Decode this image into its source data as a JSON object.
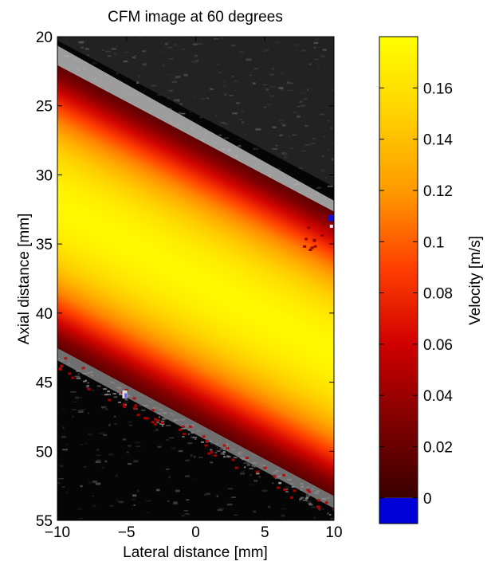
{
  "chart_data": {
    "type": "heatmap",
    "title": "CFM image at 60 degrees",
    "xlabel": "Lateral distance [mm]",
    "ylabel": "Axial distance [mm]",
    "xlim": [
      -10,
      10
    ],
    "ylim": [
      20,
      55
    ],
    "y_reversed": true,
    "x_ticks": [
      {
        "value": -10,
        "label": "−10"
      },
      {
        "value": -5,
        "label": "−5"
      },
      {
        "value": 0,
        "label": "0"
      },
      {
        "value": 5,
        "label": "5"
      },
      {
        "value": 10,
        "label": "10"
      }
    ],
    "y_ticks": [
      {
        "value": 20,
        "label": "20"
      },
      {
        "value": 25,
        "label": "25"
      },
      {
        "value": 30,
        "label": "30"
      },
      {
        "value": 35,
        "label": "35"
      },
      {
        "value": 40,
        "label": "40"
      },
      {
        "value": 45,
        "label": "45"
      },
      {
        "value": 50,
        "label": "50"
      },
      {
        "value": 55,
        "label": "55"
      }
    ],
    "vessel": {
      "upper_wall": [
        [
          -10,
          22.0
        ],
        [
          10,
          32.6
        ]
      ],
      "lower_wall": [
        [
          -10,
          42.6
        ],
        [
          10,
          53.3
        ]
      ],
      "peak_velocity": 0.175
    },
    "colorbar": {
      "label": "Velocity [m/s]",
      "range": [
        -0.01,
        0.18
      ],
      "negative_color": "#0000d8",
      "colormap": [
        "#3a0000",
        "#800000",
        "#d00000",
        "#ff4000",
        "#ff9a00",
        "#ffd200",
        "#ffff00"
      ],
      "ticks": [
        {
          "value": 0,
          "label": "0"
        },
        {
          "value": 0.02,
          "label": "0.02"
        },
        {
          "value": 0.04,
          "label": "0.04"
        },
        {
          "value": 0.06,
          "label": "0.06"
        },
        {
          "value": 0.08,
          "label": "0.08"
        },
        {
          "value": 0.1,
          "label": "0.1"
        },
        {
          "value": 0.12,
          "label": "0.12"
        },
        {
          "value": 0.14,
          "label": "0.14"
        },
        {
          "value": 0.16,
          "label": "0.16"
        }
      ]
    }
  }
}
